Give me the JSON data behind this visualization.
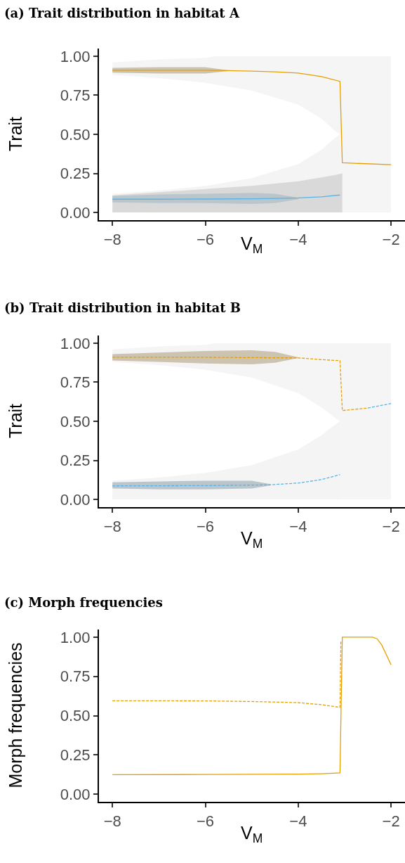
{
  "chart_data": [
    {
      "type": "line",
      "title": "(a) Trait distribution in habitat A",
      "xlabel": "V$_{M}$",
      "ylabel": "Trait",
      "xlim": [
        -8.29,
        -1.7
      ],
      "xticks": [
        {
          "value": -8,
          "label": "−8"
        },
        {
          "value": -6,
          "label": "−6"
        },
        {
          "value": -4,
          "label": "−4"
        },
        {
          "value": -2,
          "label": "−2"
        }
      ],
      "ylim": [
        -0.05,
        1.05
      ],
      "yticks": [
        {
          "value": 0,
          "label": "0.00"
        },
        {
          "value": 0.25,
          "label": "0.25"
        },
        {
          "value": 0.5,
          "label": "0.50"
        },
        {
          "value": 0.75,
          "label": "0.75"
        },
        {
          "value": 1,
          "label": "1.00"
        }
      ],
      "grid": false,
      "series": [
        {
          "type": "area",
          "color": "#f5f5f5",
          "x": [
            -8,
            -7,
            -6,
            -5.8,
            -5,
            -4,
            -3,
            -2
          ],
          "values": [
            0.96,
            0.98,
            0.99,
            1,
            1,
            1,
            1,
            1
          ]
        },
        {
          "type": "area",
          "color": "#ffffff",
          "x": [
            -8,
            -7,
            -6,
            -5.8,
            -5,
            -4,
            -3.5,
            -3.2,
            -3.1
          ],
          "values": [
            0.88,
            0.86,
            0.83,
            0.82,
            0.78,
            0.69,
            0.6,
            0.52,
            0.5
          ]
        },
        {
          "type": "area",
          "color": "#f4f4f4",
          "x": [
            -8,
            -7,
            -6,
            -5.8,
            -5,
            -4,
            -3.5,
            -3.2,
            -3.1
          ],
          "values": [
            0.12,
            0.14,
            0.17,
            0.18,
            0.22,
            0.31,
            0.4,
            0.48,
            0.5
          ]
        },
        {
          "type": "area",
          "color": "#d9d9d9",
          "x": [
            -8,
            -7,
            -6,
            -5.8,
            -5,
            -4,
            -3.5,
            -3.2,
            -3.05
          ],
          "values": [
            0.11,
            0.13,
            0.15,
            0.155,
            0.17,
            0.2,
            0.225,
            0.24,
            0.25
          ]
        },
        {
          "type": "line",
          "color": "#e69f00",
          "line_style": "solid",
          "x": [
            -8,
            -7,
            -6,
            -5.5,
            -5,
            -4.5,
            -4,
            -3.5,
            -3.1,
            -3.05,
            -2
          ],
          "values": [
            0.91,
            0.91,
            0.91,
            0.908,
            0.905,
            0.9,
            0.892,
            0.87,
            0.839,
            0.318,
            0.306
          ],
          "lower": [
            0.895,
            0.89,
            0.89,
            0.905,
            null,
            null,
            null,
            null,
            null,
            null,
            null
          ],
          "upper": [
            0.925,
            0.93,
            0.93,
            0.91,
            null,
            null,
            null,
            null,
            null,
            null,
            null
          ]
        },
        {
          "type": "line",
          "color": "#56b4e9",
          "line_style": "solid",
          "x": [
            -8,
            -7,
            -6,
            -5,
            -4.5,
            -4,
            -3.5,
            -3.1
          ],
          "values": [
            0.085,
            0.085,
            0.086,
            0.088,
            0.09,
            0.093,
            0.1,
            0.112
          ],
          "lower": [
            0.065,
            0.06,
            0.06,
            0.055,
            0.06,
            0.085,
            null,
            null
          ],
          "upper": [
            0.105,
            0.115,
            0.12,
            0.125,
            0.12,
            0.095,
            null,
            null
          ]
        }
      ]
    },
    {
      "type": "line",
      "title": "(b) Trait distribution in habitat B",
      "xlabel": "V$_{M}$",
      "ylabel": "Trait",
      "xlim": [
        -8.29,
        -1.7
      ],
      "xticks": [
        {
          "value": -8,
          "label": "−8"
        },
        {
          "value": -6,
          "label": "−6"
        },
        {
          "value": -4,
          "label": "−4"
        },
        {
          "value": -2,
          "label": "−2"
        }
      ],
      "ylim": [
        -0.05,
        1.05
      ],
      "yticks": [
        {
          "value": 0,
          "label": "0.00"
        },
        {
          "value": 0.25,
          "label": "0.25"
        },
        {
          "value": 0.5,
          "label": "0.50"
        },
        {
          "value": 0.75,
          "label": "0.75"
        },
        {
          "value": 1,
          "label": "1.00"
        }
      ],
      "grid": false,
      "series": [
        {
          "type": "area",
          "color": "#f5f5f5",
          "x": [
            -8,
            -7,
            -6,
            -5.8,
            -5,
            -4,
            -3,
            -2
          ],
          "values": [
            0.96,
            0.98,
            0.99,
            1,
            1,
            1,
            1,
            1
          ]
        },
        {
          "type": "area",
          "color": "#ffffff",
          "x": [
            -8,
            -7,
            -6,
            -5.8,
            -5,
            -4,
            -3.5,
            -3.2,
            -3.1
          ],
          "values": [
            0.88,
            0.86,
            0.83,
            0.82,
            0.78,
            0.68,
            0.59,
            0.52,
            0.5
          ]
        },
        {
          "type": "area",
          "color": "#f4f4f4",
          "x": [
            -8,
            -7,
            -6,
            -5.8,
            -5,
            -4,
            -3.5,
            -3.2,
            -3.1
          ],
          "values": [
            0.12,
            0.14,
            0.17,
            0.18,
            0.22,
            0.32,
            0.41,
            0.48,
            0.5
          ]
        },
        {
          "type": "line",
          "color": "#e69f00",
          "line_style": "dashed",
          "x": [
            -8,
            -7,
            -6,
            -5,
            -4.5,
            -4,
            -3.5,
            -3.1,
            -3.05,
            -2.5
          ],
          "values": [
            0.91,
            0.91,
            0.91,
            0.908,
            0.907,
            0.906,
            0.895,
            0.888,
            0.569,
            0.585
          ],
          "lower": [
            0.89,
            0.88,
            0.87,
            0.865,
            0.875,
            0.905,
            null,
            null,
            null,
            null
          ],
          "upper": [
            0.93,
            0.94,
            0.95,
            0.955,
            0.945,
            0.91,
            null,
            null,
            null,
            null
          ]
        },
        {
          "type": "line",
          "color": "#56b4e9",
          "line_style": "dashed",
          "x": [
            -2.5,
            -2
          ],
          "values": [
            0.585,
            0.614
          ]
        },
        {
          "type": "line",
          "color": "#56b4e9",
          "line_style": "dashed",
          "x": [
            -8,
            -7,
            -6,
            -5,
            -4.6,
            -4,
            -3.5,
            -3.1
          ],
          "values": [
            0.087,
            0.088,
            0.089,
            0.092,
            0.094,
            0.105,
            0.127,
            0.159
          ],
          "lower": [
            0.07,
            0.065,
            0.065,
            0.07,
            0.09,
            null,
            null,
            null
          ],
          "upper": [
            0.11,
            0.115,
            0.12,
            0.12,
            0.098,
            null,
            null,
            null
          ]
        }
      ]
    },
    {
      "type": "line",
      "title": "(c) Morph frequencies",
      "xlabel": "V$_{M}$",
      "ylabel": "Morph frequencies",
      "xlim": [
        -8.29,
        -1.7
      ],
      "xticks": [
        {
          "value": -8,
          "label": "−8"
        },
        {
          "value": -6,
          "label": "−6"
        },
        {
          "value": -4,
          "label": "−4"
        },
        {
          "value": -2,
          "label": "−2"
        }
      ],
      "ylim": [
        -0.05,
        1.05
      ],
      "yticks": [
        {
          "value": 0,
          "label": "0.00"
        },
        {
          "value": 0.25,
          "label": "0.25"
        },
        {
          "value": 0.5,
          "label": "0.50"
        },
        {
          "value": 0.75,
          "label": "0.75"
        },
        {
          "value": 1,
          "label": "1.00"
        }
      ],
      "grid": false,
      "series": [
        {
          "type": "line",
          "color": "#e69f00",
          "line_style": "solid",
          "x": [
            -8,
            -6,
            -4,
            -3.5,
            -3.1,
            -3.05,
            -2.4,
            -2.3,
            -2.2,
            -2
          ],
          "values": [
            0.124,
            0.125,
            0.127,
            0.13,
            0.135,
            1.0,
            1.0,
            0.99,
            0.95,
            0.824
          ]
        },
        {
          "type": "line",
          "color": "#e69f00",
          "line_style": "dashed",
          "x": [
            -8,
            -6,
            -5,
            -4,
            -3.5,
            -3.1,
            -3.08
          ],
          "values": [
            0.595,
            0.594,
            0.59,
            0.583,
            0.57,
            0.553,
            0.98
          ]
        }
      ]
    }
  ]
}
